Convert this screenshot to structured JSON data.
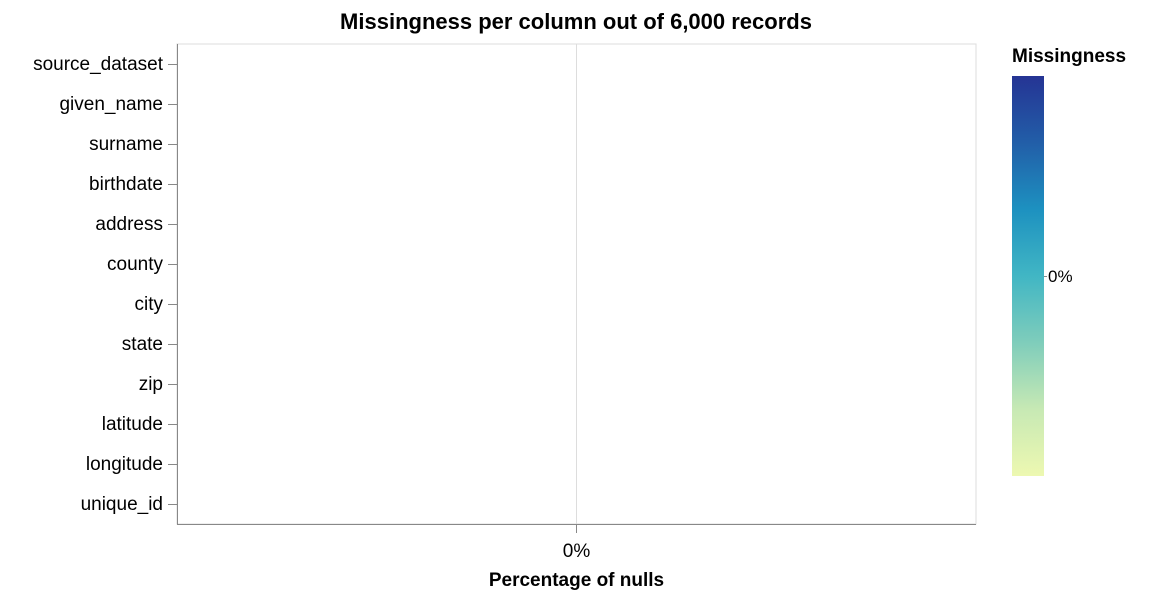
{
  "chart_data": {
    "type": "bar",
    "title": "Missingness per column out of 6,000 records",
    "xlabel": "Percentage of nulls",
    "ylabel": "",
    "categories": [
      "source_dataset",
      "given_name",
      "surname",
      "birthdate",
      "address",
      "county",
      "city",
      "state",
      "zip",
      "latitude",
      "longitude",
      "unique_id"
    ],
    "values": [
      0,
      0,
      0,
      0,
      0,
      0,
      0,
      0,
      0,
      0,
      0,
      0
    ],
    "x_tick_labels": [
      "0%"
    ],
    "grid": true,
    "legend": {
      "title": "Missingness",
      "placement": "right",
      "labels": [
        "0%"
      ],
      "color_scale": [
        "#edf8b1",
        "#c7e9b4",
        "#7fcdbb",
        "#41b6c4",
        "#1d91c0",
        "#225ea8",
        "#253494"
      ]
    }
  }
}
